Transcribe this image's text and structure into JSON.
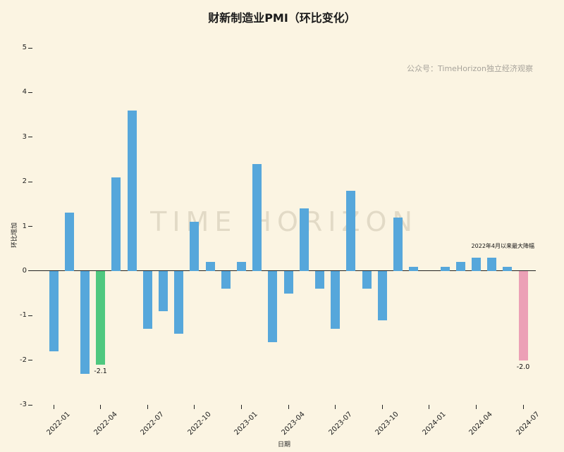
{
  "watermarks": {
    "account": "公众号：TimeHorizon独立经济观察",
    "brand": "TIME HORIZON"
  },
  "annotation": "2022年4月以来最大降幅",
  "colors": {
    "background": "#fbf4e2",
    "bar_default": "#56a7db",
    "bar_highlight_2022_low": "#4fc87f",
    "bar_highlight_latest": "#eca0b6",
    "zero_line": "#222222",
    "watermark_gray": "#a8a49c"
  },
  "chart_data": {
    "type": "bar",
    "title": "财新制造业PMI（环比变化）",
    "xlabel": "日期",
    "ylabel": "环比增加",
    "ylim": [
      -3,
      5
    ],
    "yticks": [
      5,
      4,
      3,
      2,
      1,
      0,
      -1,
      -2,
      -3
    ],
    "xticks": [
      "2022-01",
      "2022-04",
      "2022-07",
      "2022-10",
      "2023-01",
      "2023-04",
      "2023-07",
      "2023-10",
      "2024-01",
      "2024-04",
      "2024-07"
    ],
    "categories": [
      "2022-01",
      "2022-02",
      "2022-03",
      "2022-04",
      "2022-05",
      "2022-06",
      "2022-07",
      "2022-08",
      "2022-09",
      "2022-10",
      "2022-11",
      "2022-12",
      "2023-01",
      "2023-02",
      "2023-03",
      "2023-04",
      "2023-05",
      "2023-06",
      "2023-07",
      "2023-08",
      "2023-09",
      "2023-10",
      "2023-11",
      "2023-12",
      "2024-01",
      "2024-02",
      "2024-03",
      "2024-04",
      "2024-05",
      "2024-06",
      "2024-07"
    ],
    "values": [
      -1.8,
      1.3,
      -2.3,
      -2.1,
      2.1,
      3.6,
      -1.3,
      -0.9,
      -1.4,
      1.1,
      0.2,
      -0.4,
      0.2,
      2.4,
      -1.6,
      -0.5,
      1.4,
      -0.4,
      -1.3,
      1.8,
      -0.4,
      -1.1,
      1.2,
      0.1,
      0,
      0.1,
      0.2,
      0.3,
      0.3,
      0.1,
      -2.0
    ],
    "bar_color": "#56a7db",
    "highlights": [
      {
        "index": 3,
        "category": "2022-04",
        "color": "#4fc87f",
        "label": "-2.1"
      },
      {
        "index": 30,
        "category": "2024-07",
        "color": "#eca0b6",
        "label": "-2.0"
      }
    ],
    "annotations": [
      {
        "text": "2022年4月以来最大降幅",
        "near": "2024-07"
      }
    ],
    "grid": false,
    "legend": false
  }
}
